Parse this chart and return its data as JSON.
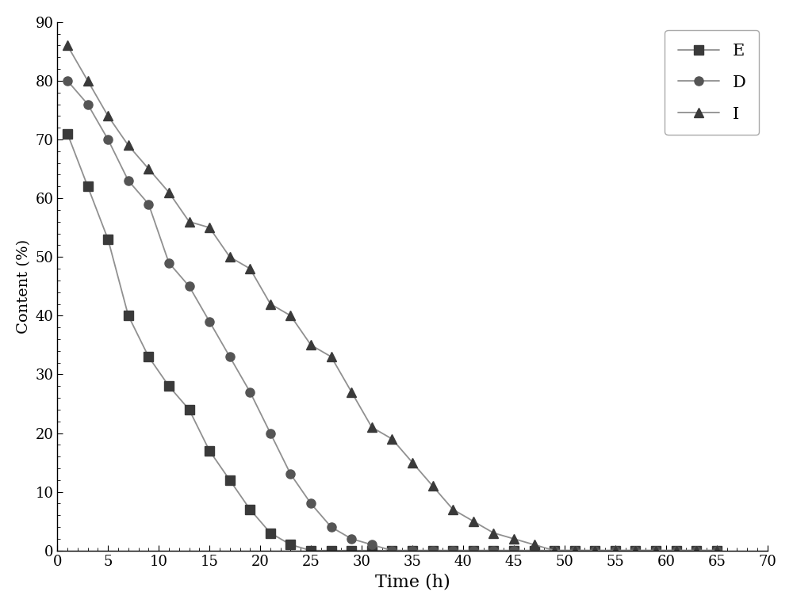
{
  "E": {
    "x": [
      1,
      3,
      5,
      7,
      9,
      11,
      13,
      15,
      17,
      19,
      21,
      23,
      25,
      27,
      29,
      31,
      33,
      35,
      37,
      39,
      41,
      43,
      45,
      47,
      49,
      51,
      53,
      55,
      57,
      59,
      61,
      63,
      65
    ],
    "y": [
      71,
      62,
      53,
      40,
      33,
      28,
      24,
      17,
      12,
      7,
      3,
      1,
      0,
      0,
      0,
      0,
      0,
      0,
      0,
      0,
      0,
      0,
      0,
      0,
      0,
      0,
      0,
      0,
      0,
      0,
      0,
      0,
      0
    ],
    "color": "#3a3a3a",
    "marker": "s",
    "label": "E"
  },
  "D": {
    "x": [
      1,
      3,
      5,
      7,
      9,
      11,
      13,
      15,
      17,
      19,
      21,
      23,
      25,
      27,
      29,
      31,
      33,
      35,
      37,
      39,
      41,
      43,
      45,
      47,
      49,
      51,
      53,
      55,
      57,
      59,
      61,
      63,
      65
    ],
    "y": [
      80,
      76,
      70,
      63,
      59,
      49,
      45,
      39,
      33,
      27,
      20,
      13,
      8,
      4,
      2,
      1,
      0,
      0,
      0,
      0,
      0,
      0,
      0,
      0,
      0,
      0,
      0,
      0,
      0,
      0,
      0,
      0,
      0
    ],
    "color": "#555555",
    "marker": "o",
    "label": "D"
  },
  "I": {
    "x": [
      1,
      3,
      5,
      7,
      9,
      11,
      13,
      15,
      17,
      19,
      21,
      23,
      25,
      27,
      29,
      31,
      33,
      35,
      37,
      39,
      41,
      43,
      45,
      47,
      49,
      51,
      53,
      55,
      57,
      59,
      61,
      63,
      65
    ],
    "y": [
      86,
      80,
      74,
      69,
      65,
      61,
      56,
      55,
      50,
      48,
      42,
      40,
      35,
      33,
      27,
      21,
      19,
      15,
      11,
      7,
      5,
      3,
      2,
      1,
      0,
      0,
      0,
      0,
      0,
      0,
      0,
      0,
      0
    ],
    "color": "#3a3a3a",
    "marker": "^",
    "label": "I"
  },
  "xlabel": "Time (h)",
  "ylabel": "Content (%)",
  "xlim": [
    0,
    70
  ],
  "ylim": [
    0,
    90
  ],
  "xticks": [
    0,
    5,
    10,
    15,
    20,
    25,
    30,
    35,
    40,
    45,
    50,
    55,
    60,
    65,
    70
  ],
  "yticks": [
    0,
    10,
    20,
    30,
    40,
    50,
    60,
    70,
    80,
    90
  ],
  "line_color": "#909090",
  "markersize": 8,
  "linewidth": 1.3,
  "xlabel_fontsize": 16,
  "ylabel_fontsize": 14,
  "tick_fontsize": 13,
  "legend_fontsize": 15,
  "figsize": [
    10.0,
    7.66
  ],
  "dpi": 100
}
